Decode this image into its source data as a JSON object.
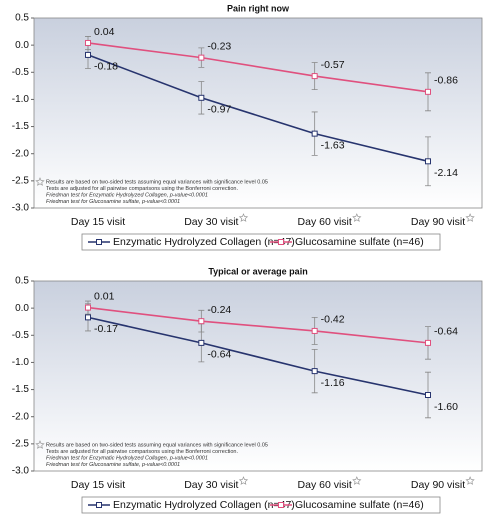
{
  "chart_data": [
    {
      "type": "line",
      "title": "Pain right now",
      "categories": [
        "Day 15 visit",
        "Day 30 visit",
        "Day 60 visit",
        "Day 90 visit"
      ],
      "series": [
        {
          "name": "Enzymatic Hydrolyzed Collagen (n=47)",
          "color": "#27346e",
          "values": [
            -0.18,
            -0.97,
            -1.63,
            -2.14
          ],
          "errors": [
            0.25,
            0.3,
            0.4,
            0.45
          ]
        },
        {
          "name": "Glucosamine sulfate (n=46)",
          "color": "#e0507e",
          "values": [
            0.04,
            -0.23,
            -0.57,
            -0.86
          ],
          "errors": [
            0.12,
            0.18,
            0.25,
            0.35
          ]
        }
      ],
      "ylim": [
        -3,
        0.5
      ],
      "yticks": [
        0.5,
        {
          "value": 0,
          "label": "0.0"
        },
        -0.5,
        {
          "value": -1,
          "label": "-1.0"
        },
        -1.5,
        {
          "value": -2,
          "label": "-2.0"
        },
        -2.5,
        {
          "value": -3,
          "label": "-3.0"
        }
      ],
      "notes": [
        "Results are based on two-sided tests assuming equal variances with significance level 0.05",
        "Tests are adjusted for all pairwise comparisons using the Bonferroni correction.",
        "Friedman test for Enzymatic Hydrolyzed Collagen, p-value<0.0001",
        "Friedman test for Glucosamine sulfate, p-value<0.0001"
      ],
      "legend": "bottom"
    },
    {
      "type": "line",
      "title": "Typical or average pain",
      "categories": [
        "Day 15 visit",
        "Day 30 visit",
        "Day 60 visit",
        "Day 90 visit"
      ],
      "series": [
        {
          "name": "Enzymatic Hydrolyzed Collagen (n=47)",
          "color": "#27346e",
          "values": [
            -0.17,
            -0.64,
            -1.16,
            -1.6
          ],
          "value_labels": [
            "-0.17",
            "-0.64",
            "-1.16",
            "-1.60"
          ],
          "errors": [
            0.25,
            0.35,
            0.4,
            0.42
          ]
        },
        {
          "name": "Glucosamine sulfate (n=46)",
          "color": "#e0507e",
          "values": [
            0.01,
            -0.24,
            -0.42,
            -0.64
          ],
          "errors": [
            0.12,
            0.2,
            0.25,
            0.3
          ]
        }
      ],
      "ylim": [
        -3,
        0.5
      ],
      "yticks": [
        0.5,
        {
          "value": 0,
          "label": "0.0"
        },
        -0.5,
        {
          "value": -1,
          "label": "-1.0"
        },
        -1.5,
        {
          "value": -2,
          "label": "-2.0"
        },
        -2.5,
        {
          "value": -3,
          "label": "-3.0"
        }
      ],
      "notes": [
        "Results are based on two-sided tests assuming equal variances with significance level 0.05",
        "Tests are adjusted for all pairwise comparisons using the Bonferroni correction.",
        "Friedman test for Enzymatic Hydrolyzed Collagen, p-value<0.0001",
        "Friedman test for Glucosamine sulfate, p-value<0.0001"
      ],
      "legend": "bottom"
    }
  ]
}
